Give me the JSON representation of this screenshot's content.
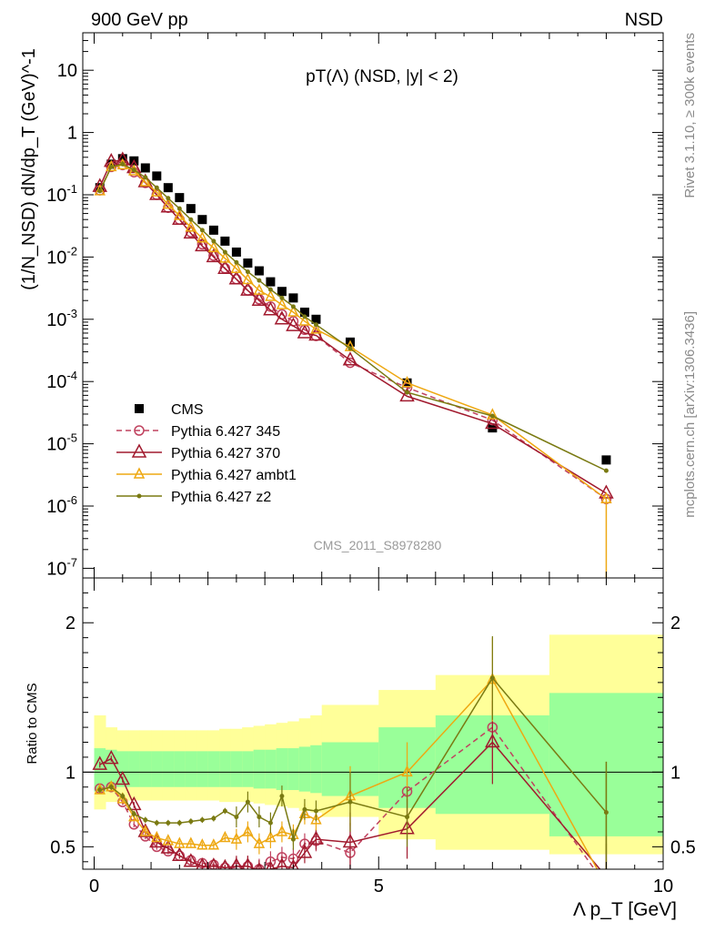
{
  "header": {
    "left": "900 GeV pp",
    "right": "NSD"
  },
  "side": {
    "rivet": "Rivet 3.1.10, ≥ 300k events",
    "mcplots": "mcplots.cern.ch [arXiv:1306.3436]"
  },
  "watermark": "CMS_2011_S8978280",
  "colors": {
    "cms": "#000000",
    "p345": "#c0425f",
    "p370": "#a11a2e",
    "ambt1": "#eea812",
    "z2": "#7a7a12",
    "band_outer": "#ffff99",
    "band_inner": "#99ff99"
  },
  "chart_data": [
    {
      "type": "scatter",
      "title": "pT(Λ) (NSD, |y| < 2)",
      "ylabel": "(1/N_NSD) dN/dp_T (GeV)^-1",
      "xlabel": "",
      "scale": "log",
      "xlim": [
        -0.2,
        10
      ],
      "ylim": [
        7e-08,
        40
      ],
      "ytick_labels": [
        "10^-7",
        "10^-6",
        "10^-5",
        "10^-4",
        "10^-3",
        "10^-2",
        "10^-1",
        "1",
        "10"
      ],
      "legend": [
        "CMS",
        "Pythia 6.427 345",
        "Pythia 6.427 370",
        "Pythia 6.427 ambt1",
        "Pythia 6.427 z2"
      ],
      "series": [
        {
          "name": "CMS",
          "x": [
            0.1,
            0.3,
            0.5,
            0.7,
            0.9,
            1.1,
            1.3,
            1.5,
            1.7,
            1.9,
            2.1,
            2.3,
            2.5,
            2.7,
            2.9,
            3.1,
            3.3,
            3.5,
            3.7,
            3.9,
            4.5,
            5.5,
            7.0,
            9.0
          ],
          "y": [
            0.13,
            0.31,
            0.38,
            0.35,
            0.27,
            0.2,
            0.13,
            0.09,
            0.06,
            0.04,
            0.027,
            0.018,
            0.012,
            0.008,
            0.006,
            0.004,
            0.0028,
            0.0022,
            0.0013,
            0.001,
            0.00043,
            9.5e-05,
            1.8e-05,
            5.5e-06
          ]
        },
        {
          "name": "Pythia 6.427 345",
          "x": [
            0.1,
            0.3,
            0.5,
            0.7,
            0.9,
            1.1,
            1.3,
            1.5,
            1.7,
            1.9,
            2.1,
            2.3,
            2.5,
            2.7,
            2.9,
            3.1,
            3.3,
            3.5,
            3.7,
            3.9,
            4.5,
            5.5,
            7.0,
            9.0
          ],
          "y": [
            0.118,
            0.28,
            0.3,
            0.23,
            0.155,
            0.1,
            0.062,
            0.04,
            0.025,
            0.016,
            0.0105,
            0.0066,
            0.0044,
            0.0029,
            0.0021,
            0.0016,
            0.0012,
            0.00093,
            0.00068,
            0.00054,
            0.0002,
            8e-05,
            2.4e-05,
            1.3e-06
          ]
        },
        {
          "name": "Pythia 6.427 370",
          "x": [
            0.1,
            0.3,
            0.5,
            0.7,
            0.9,
            1.1,
            1.3,
            1.5,
            1.7,
            1.9,
            2.1,
            2.3,
            2.5,
            2.7,
            2.9,
            3.1,
            3.3,
            3.5,
            3.7,
            3.9,
            4.5,
            5.5,
            7.0,
            9.0
          ],
          "y": [
            0.135,
            0.34,
            0.36,
            0.27,
            0.16,
            0.1,
            0.063,
            0.04,
            0.024,
            0.015,
            0.01,
            0.0065,
            0.0044,
            0.0029,
            0.002,
            0.0014,
            0.001,
            0.00078,
            0.0006,
            0.00055,
            0.00022,
            5.8e-05,
            2.1e-05,
            1.6e-06
          ]
        },
        {
          "name": "Pythia 6.427 ambt1",
          "x": [
            0.1,
            0.3,
            0.5,
            0.7,
            0.9,
            1.1,
            1.3,
            1.5,
            1.7,
            1.9,
            2.1,
            2.3,
            2.5,
            2.7,
            2.9,
            3.1,
            3.3,
            3.5,
            3.7,
            3.9,
            4.5,
            5.5,
            7.0,
            9.0
          ],
          "y": [
            0.115,
            0.28,
            0.3,
            0.24,
            0.16,
            0.11,
            0.07,
            0.046,
            0.03,
            0.02,
            0.014,
            0.0095,
            0.0065,
            0.0043,
            0.0029,
            0.0023,
            0.0017,
            0.0013,
            0.00093,
            0.00069,
            0.00036,
            9.5e-05,
            2.9e-05,
            1.3e-06
          ]
        },
        {
          "name": "Pythia 6.427 z2",
          "x": [
            0.1,
            0.3,
            0.5,
            0.7,
            0.9,
            1.1,
            1.3,
            1.5,
            1.7,
            1.9,
            2.1,
            2.3,
            2.5,
            2.7,
            2.9,
            3.1,
            3.3,
            3.5,
            3.7,
            3.9,
            4.5,
            5.5,
            7.0,
            9.0
          ],
          "y": [
            0.115,
            0.28,
            0.31,
            0.25,
            0.19,
            0.13,
            0.088,
            0.06,
            0.04,
            0.027,
            0.018,
            0.012,
            0.0082,
            0.0058,
            0.0042,
            0.003,
            0.0022,
            0.0016,
            0.0011,
            0.00082,
            0.00034,
            6.7e-05,
            2.8e-05,
            3.7e-06
          ]
        }
      ]
    },
    {
      "type": "line",
      "title": "",
      "xlabel": "Λ p_T [GeV]",
      "ylabel": "Ratio to CMS",
      "xlim": [
        -0.2,
        10
      ],
      "ylim": [
        0.35,
        2.3
      ],
      "xtick_labels": [
        "0",
        "5",
        "10"
      ],
      "ytick_labels": [
        "0.5",
        "1",
        "2"
      ],
      "bands": {
        "edges": [
          0.0,
          0.2,
          0.4,
          0.6,
          0.8,
          1.0,
          1.2,
          1.4,
          1.6,
          1.8,
          2.0,
          2.2,
          2.4,
          2.6,
          2.8,
          3.0,
          3.2,
          3.4,
          3.6,
          3.8,
          4.0,
          5.0,
          6.0,
          8.0,
          10.0
        ],
        "outer_lo": [
          0.75,
          0.8,
          0.81,
          0.81,
          0.81,
          0.81,
          0.81,
          0.81,
          0.81,
          0.81,
          0.81,
          0.8,
          0.8,
          0.8,
          0.79,
          0.78,
          0.77,
          0.76,
          0.74,
          0.73,
          0.7,
          0.55,
          0.48,
          0.45
        ],
        "outer_hi": [
          1.38,
          1.3,
          1.28,
          1.28,
          1.28,
          1.28,
          1.28,
          1.28,
          1.28,
          1.28,
          1.28,
          1.29,
          1.29,
          1.3,
          1.31,
          1.32,
          1.33,
          1.34,
          1.36,
          1.38,
          1.45,
          1.55,
          1.65,
          1.92
        ],
        "inner_lo": [
          0.87,
          0.9,
          0.9,
          0.9,
          0.9,
          0.9,
          0.9,
          0.9,
          0.9,
          0.9,
          0.9,
          0.9,
          0.9,
          0.9,
          0.89,
          0.89,
          0.88,
          0.88,
          0.87,
          0.86,
          0.84,
          0.76,
          0.72,
          0.57
        ],
        "inner_hi": [
          1.16,
          1.15,
          1.14,
          1.14,
          1.14,
          1.14,
          1.14,
          1.14,
          1.14,
          1.14,
          1.14,
          1.14,
          1.14,
          1.14,
          1.15,
          1.15,
          1.16,
          1.16,
          1.17,
          1.18,
          1.2,
          1.3,
          1.38,
          1.53
        ]
      },
      "series": [
        {
          "name": "Pythia 6.427 345",
          "x": [
            0.1,
            0.3,
            0.5,
            0.7,
            0.9,
            1.1,
            1.3,
            1.5,
            1.7,
            1.9,
            2.1,
            2.3,
            2.5,
            2.7,
            2.9,
            3.1,
            3.3,
            3.5,
            3.7,
            3.9,
            4.5,
            5.5,
            7.0,
            9.0
          ],
          "y": [
            0.89,
            0.9,
            0.8,
            0.65,
            0.57,
            0.5,
            0.47,
            0.44,
            0.41,
            0.39,
            0.38,
            0.36,
            0.36,
            0.37,
            0.35,
            0.4,
            0.43,
            0.42,
            0.52,
            0.54,
            0.46,
            0.87,
            1.3,
            0.24
          ]
        },
        {
          "name": "Pythia 6.427 370",
          "x": [
            0.1,
            0.3,
            0.5,
            0.7,
            0.9,
            1.1,
            1.3,
            1.5,
            1.7,
            1.9,
            2.1,
            2.3,
            2.5,
            2.7,
            2.9,
            3.1,
            3.3,
            3.5,
            3.7,
            3.9,
            4.5,
            5.5,
            7.0,
            9.0
          ],
          "y": [
            1.05,
            1.09,
            0.95,
            0.78,
            0.6,
            0.53,
            0.49,
            0.44,
            0.4,
            0.37,
            0.37,
            0.36,
            0.37,
            0.37,
            0.34,
            0.35,
            0.37,
            0.36,
            0.46,
            0.55,
            0.53,
            0.62,
            1.2,
            0.3
          ]
        },
        {
          "name": "Pythia 6.427 ambt1",
          "x": [
            0.1,
            0.3,
            0.5,
            0.7,
            0.9,
            1.1,
            1.3,
            1.5,
            1.7,
            1.9,
            2.1,
            2.3,
            2.5,
            2.7,
            2.9,
            3.1,
            3.3,
            3.5,
            3.7,
            3.9,
            4.5,
            5.5,
            7.0,
            9.0
          ],
          "y": [
            0.88,
            0.9,
            0.82,
            0.7,
            0.6,
            0.56,
            0.54,
            0.52,
            0.52,
            0.51,
            0.51,
            0.56,
            0.55,
            0.6,
            0.52,
            0.56,
            0.6,
            0.58,
            0.72,
            0.68,
            0.84,
            1.0,
            1.62,
            0.24
          ]
        },
        {
          "name": "Pythia 6.427 z2",
          "x": [
            0.1,
            0.3,
            0.5,
            0.7,
            0.9,
            1.1,
            1.3,
            1.5,
            1.7,
            1.9,
            2.1,
            2.3,
            2.5,
            2.7,
            2.9,
            3.1,
            3.3,
            3.5,
            3.7,
            3.9,
            4.5,
            5.5,
            7.0,
            9.0
          ],
          "y": [
            0.88,
            0.9,
            0.84,
            0.72,
            0.68,
            0.66,
            0.66,
            0.66,
            0.67,
            0.68,
            0.69,
            0.74,
            0.7,
            0.8,
            0.7,
            0.66,
            0.84,
            0.55,
            0.75,
            0.74,
            0.8,
            0.7,
            1.63,
            0.73
          ]
        }
      ]
    }
  ]
}
